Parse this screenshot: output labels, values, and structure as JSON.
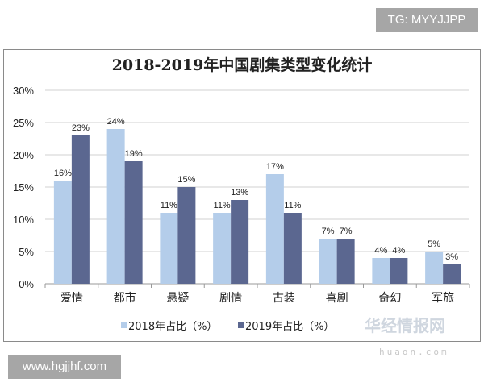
{
  "watermark_top": "TG: MYYJJPP",
  "watermark_bottom": "www.hgjjhf.com",
  "logo_watermark": {
    "name": "华经情报网",
    "url_text": "huaon.com"
  },
  "chart_data": {
    "type": "bar",
    "title": "2018-2019年中国剧集类型变化统计",
    "categories": [
      "爱情",
      "都市",
      "悬疑",
      "剧情",
      "古装",
      "喜剧",
      "奇幻",
      "军旅"
    ],
    "series": [
      {
        "name": "2018年占比（%）",
        "color": "#b4cdea",
        "values": [
          16,
          24,
          11,
          11,
          17,
          7,
          4,
          5
        ]
      },
      {
        "name": "2019年占比（%）",
        "color": "#5b6790",
        "values": [
          23,
          19,
          15,
          13,
          11,
          7,
          4,
          3
        ]
      }
    ],
    "yticks": [
      "0%",
      "5%",
      "10%",
      "15%",
      "20%",
      "25%",
      "30%"
    ],
    "ylim": [
      0,
      30
    ],
    "grid": true,
    "legend": "bottom"
  }
}
